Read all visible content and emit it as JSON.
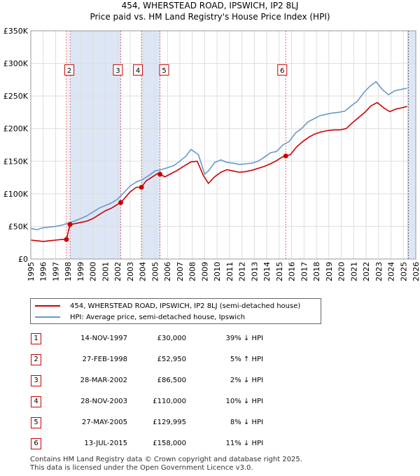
{
  "title_line1": "454, WHERSTEAD ROAD, IPSWICH, IP2 8LJ",
  "title_line2": "Price paid vs. HM Land Registry's House Price Index (HPI)",
  "colors": {
    "property": "#cc0000",
    "hpi": "#6699cc",
    "shade": "#dde6f5",
    "grid": "#dddddd"
  },
  "chart_data": {
    "type": "line",
    "title": "Price paid vs. HM Land Registry's House Price Index (HPI)",
    "xlim": [
      1995,
      2026
    ],
    "ylim": [
      0,
      350000
    ],
    "x_ticks": [
      1995,
      1996,
      1997,
      1998,
      1999,
      2000,
      2001,
      2002,
      2003,
      2004,
      2005,
      2006,
      2007,
      2008,
      2009,
      2010,
      2011,
      2012,
      2013,
      2014,
      2015,
      2016,
      2017,
      2018,
      2019,
      2020,
      2021,
      2022,
      2023,
      2024,
      2025,
      2026
    ],
    "y_ticks": [
      {
        "value": 0,
        "label": "£0"
      },
      {
        "value": 50000,
        "label": "£50K"
      },
      {
        "value": 100000,
        "label": "£100K"
      },
      {
        "value": 150000,
        "label": "£150K"
      },
      {
        "value": 200000,
        "label": "£200K"
      },
      {
        "value": 250000,
        "label": "£250K"
      },
      {
        "value": 300000,
        "label": "£300K"
      },
      {
        "value": 350000,
        "label": "£350K"
      }
    ],
    "series": [
      {
        "name": "HPI: Average price, semi-detached house, Ipswich",
        "color": "#6699cc",
        "x": [
          1995.0,
          1995.5,
          1996.0,
          1996.5,
          1997.0,
          1997.5,
          1998.0,
          1998.5,
          1999.0,
          1999.5,
          2000.0,
          2000.5,
          2001.0,
          2001.5,
          2002.0,
          2002.5,
          2003.0,
          2003.5,
          2004.0,
          2004.5,
          2005.0,
          2005.5,
          2006.0,
          2006.5,
          2007.0,
          2007.5,
          2007.9,
          2008.5,
          2009.0,
          2009.3,
          2009.8,
          2010.3,
          2010.8,
          2011.3,
          2011.8,
          2012.3,
          2012.8,
          2013.3,
          2013.8,
          2014.3,
          2014.8,
          2015.3,
          2015.8,
          2016.3,
          2016.8,
          2017.3,
          2017.8,
          2018.3,
          2018.8,
          2019.3,
          2019.8,
          2020.3,
          2020.8,
          2021.3,
          2021.8,
          2022.3,
          2022.8,
          2023.3,
          2023.8,
          2024.3,
          2024.8,
          2025.3
        ],
        "values": [
          47000,
          45000,
          48000,
          49000,
          50000,
          52000,
          55000,
          58000,
          62000,
          66000,
          72000,
          78000,
          82000,
          86000,
          92000,
          102000,
          112000,
          118000,
          122000,
          128000,
          135000,
          137000,
          140000,
          143000,
          150000,
          158000,
          168000,
          160000,
          130000,
          135000,
          148000,
          152000,
          148000,
          147000,
          145000,
          146000,
          147000,
          150000,
          156000,
          163000,
          165000,
          175000,
          180000,
          193000,
          200000,
          210000,
          215000,
          220000,
          222000,
          224000,
          225000,
          227000,
          235000,
          242000,
          255000,
          265000,
          272000,
          260000,
          252000,
          258000,
          260000,
          262000
        ]
      },
      {
        "name": "454, WHERSTEAD ROAD, IPSWICH, IP2 8LJ (semi-detached house)",
        "color": "#cc0000",
        "x": [
          1995.0,
          1995.5,
          1996.0,
          1996.5,
          1997.0,
          1997.5,
          1997.87,
          1998.16,
          1998.5,
          1999.0,
          1999.5,
          2000.0,
          2000.5,
          2001.0,
          2001.5,
          2002.0,
          2002.24,
          2002.5,
          2003.0,
          2003.5,
          2003.91,
          2004.3,
          2004.8,
          2005.2,
          2005.4,
          2005.8,
          2006.3,
          2006.8,
          2007.3,
          2007.9,
          2008.4,
          2008.9,
          2009.3,
          2009.8,
          2010.3,
          2010.8,
          2011.3,
          2011.8,
          2012.3,
          2012.8,
          2013.3,
          2013.8,
          2014.3,
          2014.8,
          2015.2,
          2015.53,
          2015.9,
          2016.4,
          2016.9,
          2017.4,
          2017.9,
          2018.4,
          2018.9,
          2019.4,
          2019.9,
          2020.4,
          2020.9,
          2021.4,
          2021.9,
          2022.4,
          2022.9,
          2023.4,
          2023.9,
          2024.4,
          2024.9,
          2025.3
        ],
        "values": [
          29000,
          28000,
          27000,
          28000,
          29000,
          30000,
          30000,
          52950,
          54000,
          56000,
          58000,
          62000,
          68000,
          74000,
          78000,
          84000,
          86500,
          92000,
          103000,
          110000,
          110000,
          120000,
          126000,
          131000,
          129995,
          126000,
          131000,
          136000,
          142000,
          149000,
          150000,
          128000,
          116000,
          126000,
          133000,
          137000,
          135000,
          133000,
          134000,
          136000,
          139000,
          142000,
          146000,
          151000,
          156000,
          158000,
          160000,
          172000,
          180000,
          187000,
          192000,
          195000,
          197000,
          198000,
          198000,
          200000,
          209000,
          217000,
          225000,
          235000,
          240000,
          232000,
          226000,
          230000,
          232000,
          234000
        ]
      }
    ],
    "sales": [
      {
        "label": "1",
        "x": 1997.87,
        "value": 30000
      },
      {
        "label": "2",
        "x": 1998.16,
        "value": 52950
      },
      {
        "label": "3",
        "x": 2002.24,
        "value": 86500
      },
      {
        "label": "4",
        "x": 2003.91,
        "value": 110000
      },
      {
        "label": "5",
        "x": 2005.4,
        "value": 129995
      },
      {
        "label": "6",
        "x": 2015.53,
        "value": 158000
      }
    ],
    "shaded_ranges": [
      [
        1998.16,
        2002.24
      ],
      [
        2003.91,
        2005.4
      ],
      [
        2025.3,
        2026
      ]
    ],
    "box_labels_value": 290000,
    "box_labels": [
      "2",
      "3",
      "4",
      "5",
      "6"
    ]
  },
  "legend": {
    "property": "454, WHERSTEAD ROAD, IPSWICH, IP2 8LJ (semi-detached house)",
    "hpi": "HPI: Average price, semi-detached house, Ipswich"
  },
  "table": [
    {
      "num": "1",
      "date": "14-NOV-1997",
      "price": "£30,000",
      "pct": "39% ↓ HPI"
    },
    {
      "num": "2",
      "date": "27-FEB-1998",
      "price": "£52,950",
      "pct": "5% ↑ HPI"
    },
    {
      "num": "3",
      "date": "28-MAR-2002",
      "price": "£86,500",
      "pct": "2% ↓ HPI"
    },
    {
      "num": "4",
      "date": "28-NOV-2003",
      "price": "£110,000",
      "pct": "10% ↓ HPI"
    },
    {
      "num": "5",
      "date": "27-MAY-2005",
      "price": "£129,995",
      "pct": "8% ↓ HPI"
    },
    {
      "num": "6",
      "date": "13-JUL-2015",
      "price": "£158,000",
      "pct": "11% ↓ HPI"
    }
  ],
  "footer": {
    "line1": "Contains HM Land Registry data © Crown copyright and database right 2025.",
    "line2": "This data is licensed under the Open Government Licence v3.0."
  }
}
